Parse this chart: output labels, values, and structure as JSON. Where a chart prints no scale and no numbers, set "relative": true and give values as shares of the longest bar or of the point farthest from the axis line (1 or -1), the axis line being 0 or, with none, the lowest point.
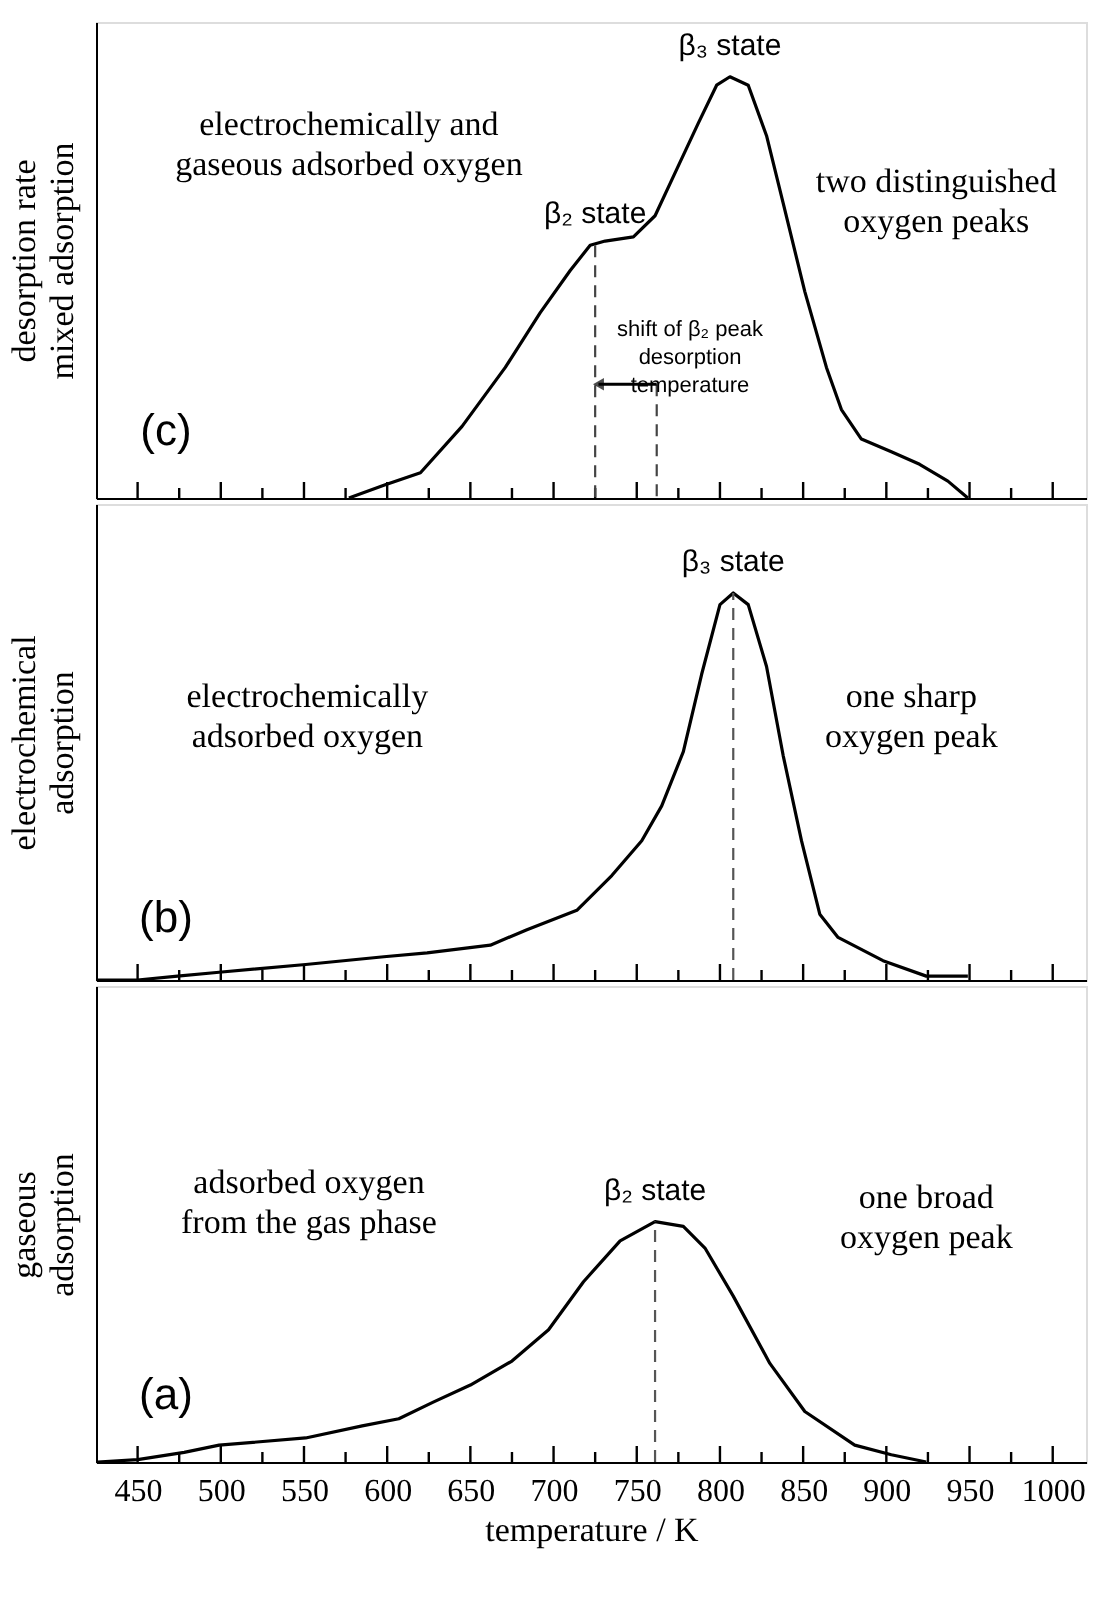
{
  "chart_data": [
    {
      "type": "line",
      "relative": true,
      "ylabel": "desorption rate\nmixed adsorption",
      "xlim": [
        425,
        1020
      ],
      "xticks": [
        {
          "value": 450,
          "label": null
        },
        {
          "value": 475,
          "label": null
        },
        {
          "value": 500,
          "label": null
        },
        {
          "value": 525,
          "label": null
        },
        {
          "value": 550,
          "label": null
        },
        {
          "value": 575,
          "label": null
        },
        {
          "value": 600,
          "label": null
        },
        {
          "value": 625,
          "label": null
        },
        {
          "value": 650,
          "label": null
        },
        {
          "value": 675,
          "label": null
        },
        {
          "value": 700,
          "label": null
        },
        {
          "value": 725,
          "label": null
        },
        {
          "value": 750,
          "label": null
        },
        {
          "value": 775,
          "label": null
        },
        {
          "value": 800,
          "label": null
        },
        {
          "value": 825,
          "label": null
        },
        {
          "value": 850,
          "label": null
        },
        {
          "value": 875,
          "label": null
        },
        {
          "value": 900,
          "label": null
        },
        {
          "value": 925,
          "label": null
        },
        {
          "value": 950,
          "label": null
        },
        {
          "value": 975,
          "label": null
        },
        {
          "value": 1000,
          "label": null
        }
      ],
      "tick_labels": false,
      "grid": false,
      "series": [
        {
          "color": "#000000",
          "line_style": "solid",
          "x": [
            577,
            598,
            620,
            645,
            671,
            692,
            710,
            722,
            731,
            748,
            761,
            774,
            787,
            798,
            806,
            817,
            828,
            838,
            851,
            864,
            873,
            885,
            903,
            920,
            937,
            949
          ],
          "values": [
            0,
            0.03,
            0.06,
            0.17,
            0.31,
            0.44,
            0.54,
            0.6,
            0.61,
            0.62,
            0.67,
            0.78,
            0.89,
            0.98,
            1,
            0.98,
            0.86,
            0.7,
            0.49,
            0.31,
            0.21,
            0.14,
            0.11,
            0.08,
            0.04,
            0
          ]
        },
        {
          "color": "#444444",
          "line_style": "dashed",
          "x": [
            725,
            725
          ],
          "values": [
            0.6,
            0
          ]
        },
        {
          "color": "#444444",
          "line_style": "dashed",
          "x": [
            762,
            762
          ],
          "values": [
            0.27,
            0
          ]
        },
        {
          "color": "#000000",
          "line_style": "solid",
          "x": [
            762,
            727
          ],
          "values": [
            0.27,
            0.27
          ]
        }
      ],
      "annotations": [
        {
          "text": "β₃ state",
          "x": 806,
          "y": 1
        },
        {
          "text": "β₂ state",
          "x": 725,
          "y": 0.6
        },
        "electrochemically and\ngaseous adsorbed oxygen",
        "two distinguished\noxygen peaks",
        "shift of β₂ peak\ndesorption\ntemperature",
        "(c)"
      ]
    },
    {
      "type": "line",
      "relative": true,
      "ylabel": "electrochemical\nadsorption",
      "xlim": [
        425,
        1020
      ],
      "xticks": [
        {
          "value": 450,
          "label": null
        },
        {
          "value": 475,
          "label": null
        },
        {
          "value": 500,
          "label": null
        },
        {
          "value": 525,
          "label": null
        },
        {
          "value": 550,
          "label": null
        },
        {
          "value": 575,
          "label": null
        },
        {
          "value": 600,
          "label": null
        },
        {
          "value": 625,
          "label": null
        },
        {
          "value": 650,
          "label": null
        },
        {
          "value": 675,
          "label": null
        },
        {
          "value": 700,
          "label": null
        },
        {
          "value": 725,
          "label": null
        },
        {
          "value": 750,
          "label": null
        },
        {
          "value": 775,
          "label": null
        },
        {
          "value": 800,
          "label": null
        },
        {
          "value": 825,
          "label": null
        },
        {
          "value": 850,
          "label": null
        },
        {
          "value": 875,
          "label": null
        },
        {
          "value": 900,
          "label": null
        },
        {
          "value": 925,
          "label": null
        },
        {
          "value": 950,
          "label": null
        },
        {
          "value": 975,
          "label": null
        },
        {
          "value": 1000,
          "label": null
        }
      ],
      "tick_labels": false,
      "grid": false,
      "series": [
        {
          "color": "#000000",
          "line_style": "solid",
          "x": [
            426,
            450,
            474,
            499,
            551,
            598,
            624,
            662,
            684,
            714,
            735,
            753,
            765,
            778,
            789,
            800,
            808,
            817,
            828,
            838,
            849,
            860,
            871,
            898,
            924,
            949
          ],
          "values": [
            0,
            0,
            0.01,
            0.02,
            0.04,
            0.06,
            0.07,
            0.09,
            0.13,
            0.18,
            0.27,
            0.36,
            0.45,
            0.59,
            0.79,
            0.97,
            1,
            0.97,
            0.81,
            0.58,
            0.36,
            0.17,
            0.11,
            0.05,
            0.01,
            0.01
          ]
        },
        {
          "color": "#555555",
          "line_style": "dashed",
          "x": [
            808,
            808
          ],
          "values": [
            0,
            1
          ]
        }
      ],
      "annotations": [
        {
          "text": "β₃ state",
          "x": 808,
          "y": 1
        },
        "electrochemically\nadsorbed oxygen",
        "one sharp\noxygen peak",
        "(b)"
      ]
    },
    {
      "type": "line",
      "relative": true,
      "ylabel": "gaseous\nadsorption",
      "xlabel": "temperature / K",
      "xlim": [
        425,
        1020
      ],
      "xticks": [
        450,
        {
          "value": 475,
          "label": null
        },
        500,
        {
          "value": 525,
          "label": null
        },
        550,
        {
          "value": 575,
          "label": null
        },
        600,
        {
          "value": 625,
          "label": null
        },
        650,
        {
          "value": 675,
          "label": null
        },
        700,
        {
          "value": 725,
          "label": null
        },
        750,
        {
          "value": 775,
          "label": null
        },
        800,
        {
          "value": 825,
          "label": null
        },
        850,
        {
          "value": 875,
          "label": null
        },
        900,
        {
          "value": 925,
          "label": null
        },
        950,
        {
          "value": 975,
          "label": null
        },
        1000
      ],
      "grid": false,
      "series": [
        {
          "color": "#000000",
          "line_style": "solid",
          "x": [
            426,
            450,
            478,
            499,
            551,
            585,
            607,
            628,
            650,
            675,
            697,
            718,
            740,
            761,
            778,
            791,
            808,
            830,
            851,
            881,
            903,
            924
          ],
          "values": [
            0,
            0.01,
            0.04,
            0.07,
            0.1,
            0.15,
            0.18,
            0.25,
            0.32,
            0.42,
            0.55,
            0.75,
            0.92,
            1,
            0.98,
            0.89,
            0.69,
            0.41,
            0.21,
            0.07,
            0.03,
            0
          ]
        },
        {
          "color": "#555555",
          "line_style": "dashed",
          "x": [
            761,
            761
          ],
          "values": [
            0,
            1
          ]
        }
      ],
      "annotations": [
        {
          "text": "β₂ state",
          "x": 761,
          "y": 1
        },
        "adsorbed oxygen\nfrom the gas phase",
        "one broad\noxygen peak",
        "(a)"
      ]
    }
  ]
}
